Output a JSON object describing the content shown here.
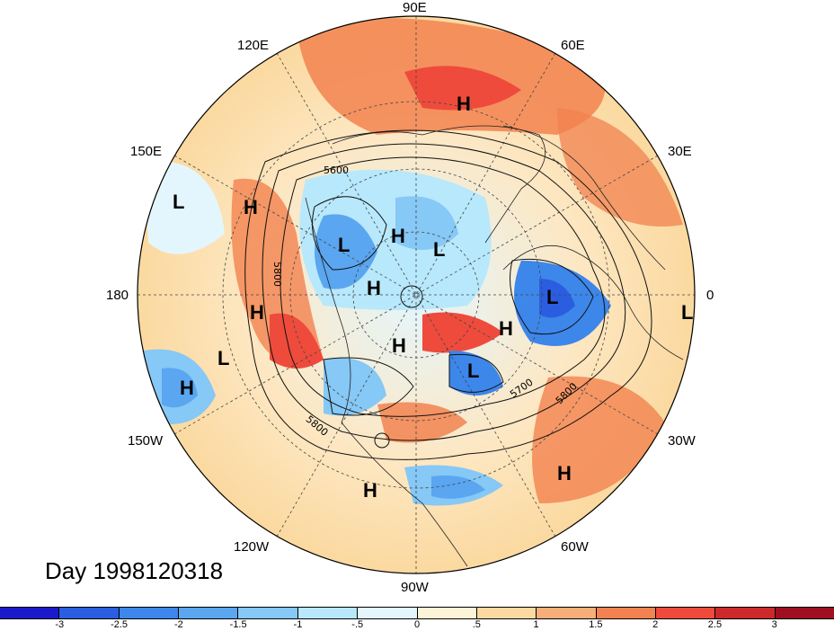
{
  "title": "Day 1998120318",
  "longitude_labels": [
    "90E",
    "60E",
    "30E",
    "0",
    "30W",
    "60W",
    "90W",
    "120W",
    "150W",
    "180",
    "150E",
    "120E"
  ],
  "contour_labels": [
    "5600",
    "5800",
    "5700",
    "5800",
    "5800"
  ],
  "pressure_centers": [
    "H",
    "L",
    "H",
    "H",
    "L",
    "L",
    "H",
    "H",
    "L",
    "H",
    "H",
    "L",
    "L",
    "H",
    "L",
    "H",
    "H"
  ],
  "colorbar": {
    "ticks": [
      "-3",
      "-2.5",
      "-2",
      "-1.5",
      "-1",
      "-.5",
      "0",
      ".5",
      "1",
      "1.5",
      "2",
      "2.5",
      "3"
    ],
    "colors": [
      "#1a1acc",
      "#2a5de0",
      "#3d86ea",
      "#5aa6f0",
      "#86c8f6",
      "#b8e8fb",
      "#e4f6fd",
      "#fdf3d6",
      "#fbd9a0",
      "#f7ae78",
      "#f2824f",
      "#ee4b3c",
      "#cc2a2a",
      "#9e1020"
    ]
  }
}
